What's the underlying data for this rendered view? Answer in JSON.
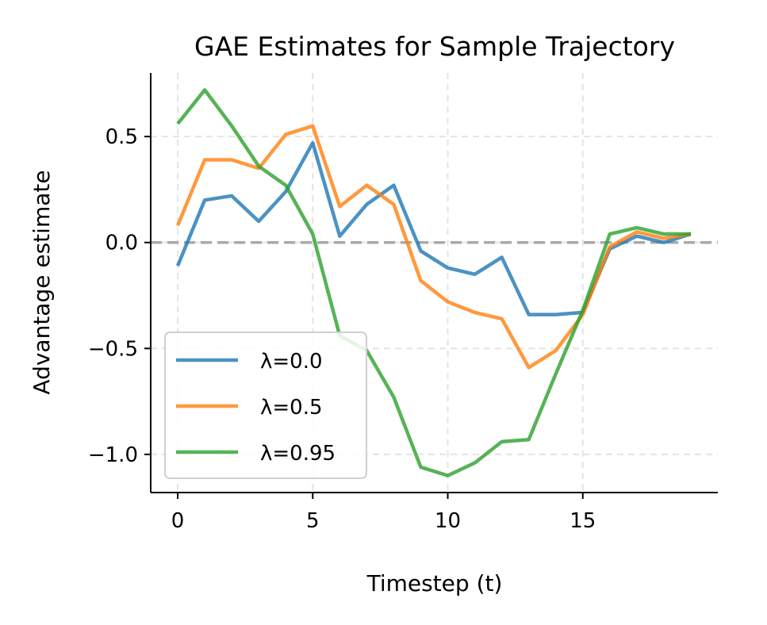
{
  "chart_data": {
    "type": "line",
    "title": "GAE Estimates for Sample Trajectory",
    "xlabel": "Timestep (t)",
    "ylabel": "Advantage estimate",
    "xlim": [
      -1,
      20
    ],
    "ylim": [
      -1.18,
      0.8
    ],
    "xticks": [
      0,
      5,
      10,
      15
    ],
    "xtick_labels": [
      "0",
      "5",
      "10",
      "15"
    ],
    "yticks": [
      0.5,
      0.0,
      -0.5,
      -1.0
    ],
    "ytick_labels": [
      "0.5",
      "0.0",
      "−0.5",
      "−1.0"
    ],
    "grid": true,
    "reference_line": {
      "y": 0,
      "style": "dashed",
      "color": "#aaaaaa"
    },
    "legend_placement": "lower-left",
    "x": [
      0,
      1,
      2,
      3,
      4,
      5,
      6,
      7,
      8,
      9,
      10,
      11,
      12,
      13,
      14,
      15,
      16,
      17,
      18,
      19
    ],
    "series": [
      {
        "name": "λ=0.0",
        "color": "#1f77b4",
        "values": [
          -0.11,
          0.2,
          0.22,
          0.1,
          0.24,
          0.47,
          0.03,
          0.18,
          0.27,
          -0.04,
          -0.12,
          -0.15,
          -0.07,
          -0.34,
          -0.34,
          -0.33,
          -0.03,
          0.03,
          0.0,
          0.04
        ]
      },
      {
        "name": "λ=0.5",
        "color": "#ff7f0e",
        "values": [
          0.08,
          0.39,
          0.39,
          0.35,
          0.51,
          0.55,
          0.17,
          0.27,
          0.18,
          -0.18,
          -0.28,
          -0.33,
          -0.36,
          -0.59,
          -0.51,
          -0.34,
          -0.02,
          0.05,
          0.02,
          0.04
        ]
      },
      {
        "name": "λ=0.95",
        "color": "#2ca02c",
        "values": [
          0.56,
          0.72,
          0.55,
          0.36,
          0.27,
          0.04,
          -0.44,
          -0.51,
          -0.73,
          -1.06,
          -1.1,
          -1.04,
          -0.94,
          -0.93,
          -0.62,
          -0.32,
          0.04,
          0.07,
          0.04,
          0.04
        ]
      }
    ]
  }
}
